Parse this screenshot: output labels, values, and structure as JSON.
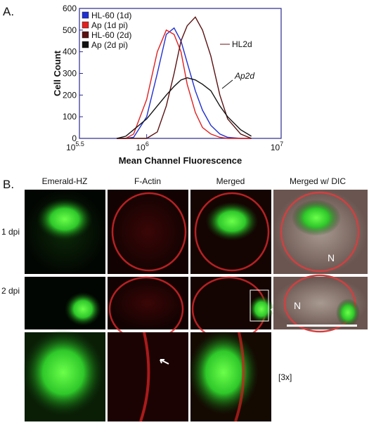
{
  "panel_a": {
    "label": "A."
  },
  "chart_data": {
    "type": "line",
    "x": [
      600000,
      700000,
      800000,
      1000000,
      1200000,
      1400000,
      1600000,
      1800000,
      2000000,
      2300000,
      2600000,
      3000000,
      3500000,
      4000000,
      5000000,
      6000000
    ],
    "series": [
      {
        "name": "HL-60 (1d)",
        "color": "#1f2fd0",
        "values": [
          0,
          0,
          5,
          100,
          300,
          480,
          510,
          450,
          350,
          220,
          130,
          60,
          20,
          5,
          0,
          0
        ]
      },
      {
        "name": "Ap (1d pi)",
        "color": "#e02020",
        "values": [
          0,
          0,
          20,
          180,
          400,
          500,
          480,
          400,
          250,
          120,
          50,
          20,
          5,
          0,
          0,
          0
        ]
      },
      {
        "name": "HL-60 (2d)",
        "color": "#5a1010",
        "values": [
          0,
          0,
          0,
          0,
          30,
          150,
          300,
          450,
          520,
          560,
          500,
          380,
          200,
          90,
          20,
          0
        ]
      },
      {
        "name": "Ap (2d pi)",
        "color": "#111111",
        "values": [
          0,
          10,
          40,
          90,
          150,
          200,
          240,
          270,
          280,
          270,
          250,
          220,
          150,
          100,
          40,
          10
        ]
      }
    ],
    "xlabel": "Mean Channel Fluorescence",
    "ylabel": "Cell Count",
    "xscale": "log",
    "xlim": [
      316228,
      10000000
    ],
    "xticks": [
      {
        "value": 316228,
        "label": "10",
        "exponent": "5.5"
      },
      {
        "value": 1000000,
        "label": "10",
        "exponent": "6"
      },
      {
        "value": 10000000,
        "label": "10",
        "exponent": "7"
      }
    ],
    "ylim": [
      0,
      600
    ],
    "yticks": [
      0,
      100,
      200,
      300,
      400,
      500,
      600
    ],
    "legend": "upper-left",
    "annotations": [
      {
        "text": "HL2d"
      },
      {
        "text": "Ap2d"
      }
    ]
  },
  "panel_b": {
    "label": "B.",
    "columns": [
      "Emerald-HZ",
      "F-Actin",
      "Merged",
      "Merged w/ DIC"
    ],
    "rows": [
      "1 dpi",
      "2 dpi"
    ],
    "nucleus_labels": [
      "N",
      "N"
    ],
    "zoom_label": "[3x]"
  }
}
